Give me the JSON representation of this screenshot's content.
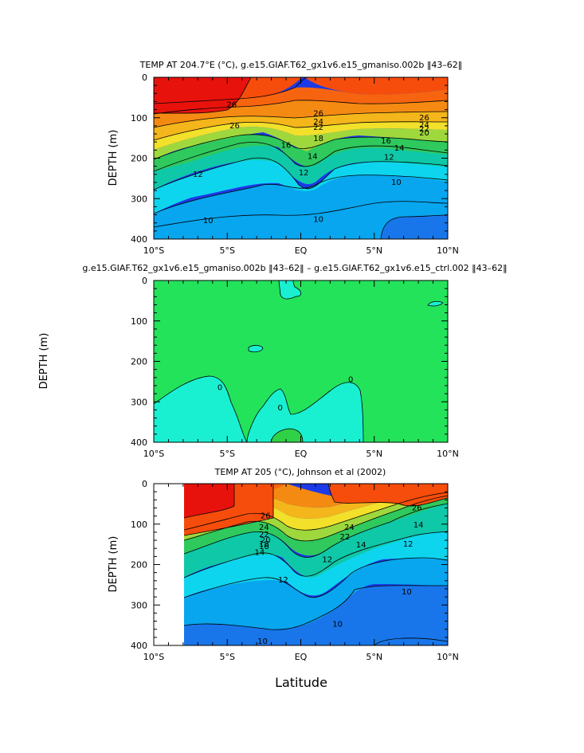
{
  "colors": {
    "t26plus": "#e8120c",
    "t24_26": "#f64d0c",
    "t22_24": "#f58a12",
    "t20_22": "#f4b61a",
    "t18_20": "#f2e02a",
    "t16_18": "#9fd83c",
    "t14_16": "#2fc95d",
    "t12_14": "#0fc8a8",
    "t11_12": "#0ed5ee",
    "t10_11": "#08a6ef",
    "t9_10": "#1876ea",
    "t8_9": "#1c3ae8",
    "diff_zero_band": "#23e35b",
    "diff_neg": "#19f0d2",
    "diff_pos": "#2fd246"
  },
  "chart_data": [
    {
      "type": "heatmap",
      "title": "TEMP AT 204.7°E (°C), g.e15.GIAF.T62_gx1v6.e15_gmaniso.002b ‖43–62‖",
      "xlabel": "",
      "ylabel": "DEPTH (m)",
      "xlim": [
        -10,
        10
      ],
      "ylim": [
        400,
        0
      ],
      "xticks": [
        "10°S",
        "5°S",
        "EQ",
        "5°N",
        "10°N"
      ],
      "yticks": [
        "0",
        "100",
        "200",
        "300",
        "400"
      ],
      "contour_labels": [
        {
          "value": "26",
          "x": -4.7,
          "depth": 68
        },
        {
          "value": "26",
          "x": 1.2,
          "depth": 90
        },
        {
          "value": "26",
          "x": 8.4,
          "depth": 100
        },
        {
          "value": "26",
          "x": -4.5,
          "depth": 120
        },
        {
          "value": "24",
          "x": 1.2,
          "depth": 110
        },
        {
          "value": "24",
          "x": 8.4,
          "depth": 118
        },
        {
          "value": "22",
          "x": 1.2,
          "depth": 124
        },
        {
          "value": "22",
          "x": 8.4,
          "depth": 128
        },
        {
          "value": "20",
          "x": 8.4,
          "depth": 138
        },
        {
          "value": "18",
          "x": 1.2,
          "depth": 152
        },
        {
          "value": "16",
          "x": 5.8,
          "depth": 158
        },
        {
          "value": "16",
          "x": -1.0,
          "depth": 168
        },
        {
          "value": "14",
          "x": 6.7,
          "depth": 175
        },
        {
          "value": "14",
          "x": 0.8,
          "depth": 196
        },
        {
          "value": "12",
          "x": 6.0,
          "depth": 198
        },
        {
          "value": "12",
          "x": -7.0,
          "depth": 240
        },
        {
          "value": "12",
          "x": 0.2,
          "depth": 236
        },
        {
          "value": "10",
          "x": 6.5,
          "depth": 260
        },
        {
          "value": "10",
          "x": -6.3,
          "depth": 355
        },
        {
          "value": "10",
          "x": 1.2,
          "depth": 352
        }
      ]
    },
    {
      "type": "heatmap",
      "title": "g.e15.GIAF.T62_gx1v6.e15_gmaniso.002b ‖43–62‖ – g.e15.GIAF.T62_gx1v6.e15_ctrl.002 ‖43–62‖",
      "xlabel": "",
      "ylabel": "DEPTH (m)",
      "xlim": [
        -10,
        10
      ],
      "ylim": [
        400,
        0
      ],
      "xticks": [
        "10°S",
        "5°S",
        "EQ",
        "5°N",
        "10°N"
      ],
      "yticks": [
        "0",
        "100",
        "200",
        "300",
        "400"
      ],
      "contour_labels": [
        {
          "value": "0",
          "x": -5.5,
          "depth": 265
        },
        {
          "value": "0",
          "x": -1.4,
          "depth": 315
        },
        {
          "value": "0",
          "x": 3.4,
          "depth": 245
        }
      ]
    },
    {
      "type": "heatmap",
      "title": "TEMP AT 205 (°C), Johnson et al (2002)",
      "xlabel": "Latitude",
      "ylabel": "DEPTH (m)",
      "xlim": [
        -10,
        10
      ],
      "ylim": [
        400,
        0
      ],
      "xticks": [
        "10°S",
        "5°S",
        "EQ",
        "5°N",
        "10°N"
      ],
      "yticks": [
        "0",
        "100",
        "200",
        "300",
        "400"
      ],
      "contour_labels": [
        {
          "value": "26",
          "x": -2.4,
          "depth": 80
        },
        {
          "value": "26",
          "x": 7.9,
          "depth": 60
        },
        {
          "value": "24",
          "x": -2.5,
          "depth": 108
        },
        {
          "value": "24",
          "x": 3.3,
          "depth": 108
        },
        {
          "value": "22",
          "x": -2.5,
          "depth": 126
        },
        {
          "value": "22",
          "x": 3.0,
          "depth": 132
        },
        {
          "value": "20",
          "x": -2.4,
          "depth": 140
        },
        {
          "value": "18",
          "x": -2.5,
          "depth": 150
        },
        {
          "value": "16",
          "x": -2.5,
          "depth": 156
        },
        {
          "value": "14",
          "x": -2.8,
          "depth": 170
        },
        {
          "value": "14",
          "x": 4.1,
          "depth": 152
        },
        {
          "value": "14",
          "x": 8.0,
          "depth": 102
        },
        {
          "value": "12",
          "x": 1.8,
          "depth": 188
        },
        {
          "value": "12",
          "x": 7.3,
          "depth": 150
        },
        {
          "value": "12",
          "x": -1.2,
          "depth": 238
        },
        {
          "value": "10",
          "x": 7.2,
          "depth": 268
        },
        {
          "value": "10",
          "x": 2.5,
          "depth": 348
        },
        {
          "value": "10",
          "x": -2.6,
          "depth": 390
        }
      ]
    }
  ]
}
